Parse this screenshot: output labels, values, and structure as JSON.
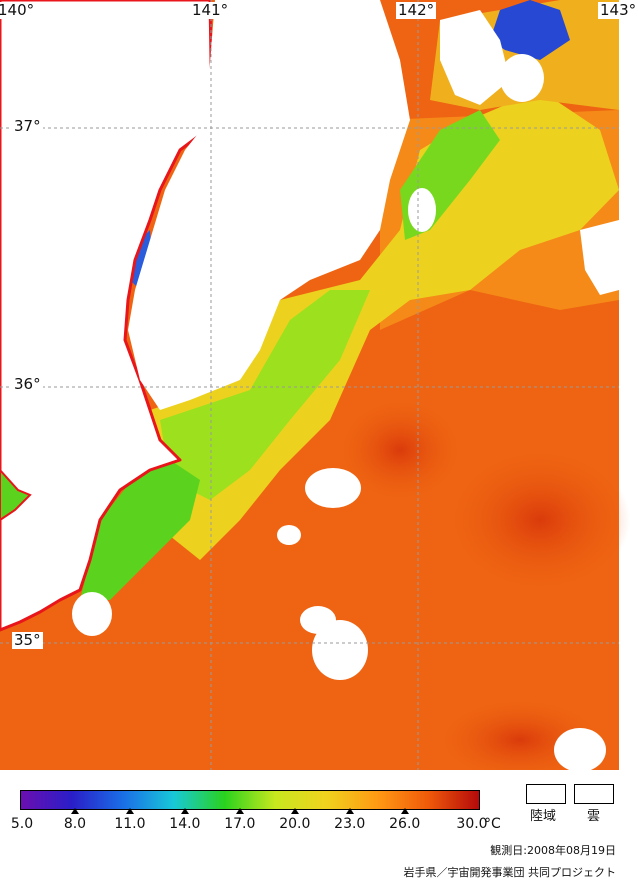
{
  "map": {
    "longitude_labels": [
      "140°",
      "141°",
      "142°",
      "143°"
    ],
    "latitude_labels": [
      "37°",
      "36°",
      "35°"
    ],
    "colors": {
      "land": "#ffffff",
      "coastline": "#e8151b",
      "grid": "#9a9a9a",
      "sst_cool": "#ff9a1a",
      "sst_warm": "#ec5a0f",
      "sst_hot": "#d8360a",
      "sst_green": "#55d020",
      "sst_yellow": "#f0e020",
      "sst_blue": "#2040d0"
    }
  },
  "colorbar": {
    "ticks": [
      "5.0",
      "8.0",
      "11.0",
      "14.0",
      "17.0",
      "20.0",
      "23.0",
      "26.0",
      "30.0"
    ],
    "unit": "°C",
    "gradient_colors": [
      "#6a0fb0",
      "#2a1ec8",
      "#1a6ee6",
      "#18c8d8",
      "#2ad21e",
      "#c8e81e",
      "#f0d21e",
      "#ff9a14",
      "#f05a0a",
      "#b40a0a"
    ]
  },
  "legend": {
    "land_label": "陸域",
    "cloud_label": "雲"
  },
  "footer": {
    "observation_date": "観測日:2008年08月19日",
    "credit": "岩手県／宇宙開発事業団  共同プロジェクト"
  }
}
